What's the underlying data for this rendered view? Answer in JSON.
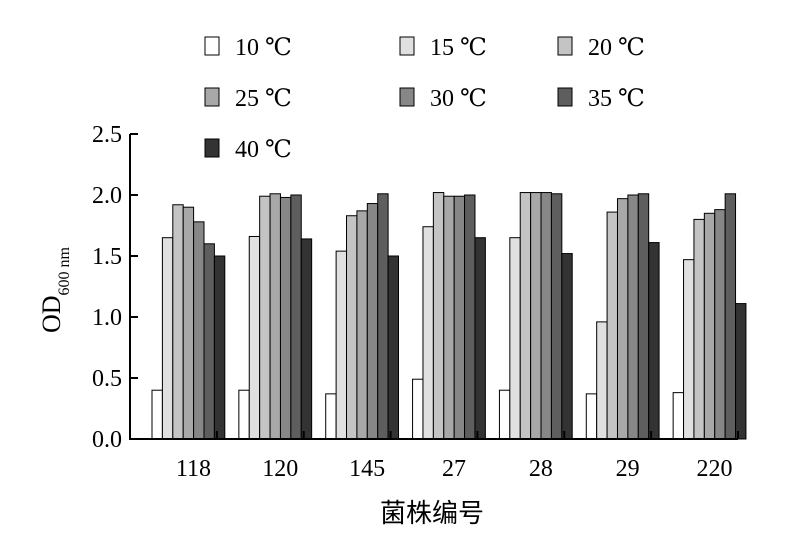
{
  "chart_data": {
    "type": "bar",
    "title": "",
    "xlabel": "菌株编号",
    "ylabel_main": "OD",
    "ylabel_sub": "600 nm",
    "ylim": [
      0,
      2.5
    ],
    "yticks": [
      "0.0",
      "0.5",
      "1.0",
      "1.5",
      "2.0",
      "2.5"
    ],
    "grid": false,
    "legend_position": "top",
    "categories": [
      "118",
      "120",
      "145",
      "27",
      "28",
      "29",
      "220"
    ],
    "series": [
      {
        "name": "10 ℃",
        "color": "#ffffff",
        "values": [
          0.4,
          0.4,
          0.37,
          0.49,
          0.4,
          0.37,
          0.38
        ]
      },
      {
        "name": "15 ℃",
        "color": "#e0e0e0",
        "values": [
          1.65,
          1.66,
          1.54,
          1.74,
          1.65,
          0.96,
          1.47
        ]
      },
      {
        "name": "20 ℃",
        "color": "#c4c4c4",
        "values": [
          1.92,
          1.99,
          1.83,
          2.02,
          2.02,
          1.86,
          1.8
        ]
      },
      {
        "name": "25 ℃",
        "color": "#a8a8a8",
        "values": [
          1.9,
          2.01,
          1.87,
          1.99,
          2.02,
          1.97,
          1.85
        ]
      },
      {
        "name": "30 ℃",
        "color": "#878787",
        "values": [
          1.78,
          1.98,
          1.93,
          1.99,
          2.02,
          2.0,
          1.88
        ]
      },
      {
        "name": "35 ℃",
        "color": "#5e5e5e",
        "values": [
          1.6,
          2.0,
          2.01,
          2.0,
          2.01,
          2.01,
          2.01
        ]
      },
      {
        "name": "40 ℃",
        "color": "#333333",
        "values": [
          1.5,
          1.64,
          1.5,
          1.65,
          1.52,
          1.61,
          1.11
        ]
      }
    ]
  }
}
